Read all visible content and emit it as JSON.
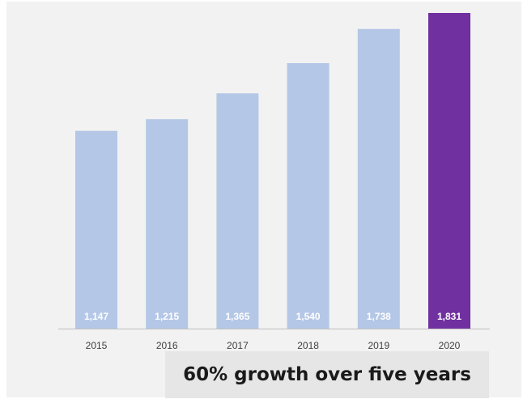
{
  "chart_data": {
    "type": "bar",
    "categories": [
      "2015",
      "2016",
      "2017",
      "2018",
      "2019",
      "2020"
    ],
    "values": [
      1147,
      1215,
      1365,
      1540,
      1738,
      1831
    ],
    "value_labels": [
      "1,147",
      "1,215",
      "1,365",
      "1,540",
      "1,738",
      "1,831"
    ],
    "ylim": [
      0,
      1831
    ],
    "grid": false,
    "legend": "none",
    "colors": {
      "default_bar": "#b4c7e7",
      "highlight_bar": "#7030a0",
      "axis": "#bfbfbf"
    },
    "highlight_index": 5
  },
  "caption": "60% growth over five years"
}
